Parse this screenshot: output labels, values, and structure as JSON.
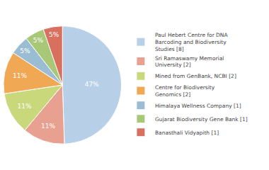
{
  "chart_data": {
    "type": "pie",
    "categories": [
      "Paul Hebert Centre for DNA\nBarcoding and Biodiversity\nStudies [8]",
      "Sri Ramaswamy Memorial\nUniversity [2]",
      "Mined from GenBank, NCBI [2]",
      "Centre for Biodiversity\nGenomics [2]",
      "Himalaya Wellness Company [1]",
      "Gujarat Biodiversity Gene Bank [1]",
      "Banasthali Vidyapith [1]"
    ],
    "values": [
      47,
      11,
      11,
      11,
      5,
      5,
      5
    ],
    "value_labels": [
      "47%",
      "11%",
      "11%",
      "11%",
      "5%",
      "5%",
      "5%"
    ],
    "colors": [
      "#b8cfe8",
      "#e8a090",
      "#c8d87a",
      "#f0a855",
      "#9bbdd4",
      "#a8c878",
      "#d87060"
    ],
    "data_labels": true,
    "legend": "right"
  }
}
